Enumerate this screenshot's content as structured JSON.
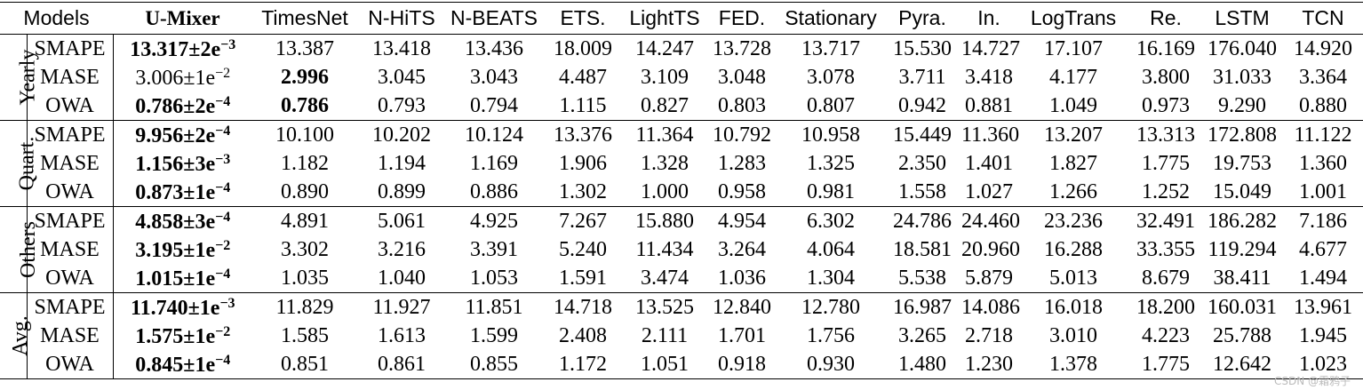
{
  "header": {
    "models": "Models",
    "columns": [
      "U-Mixer",
      "TimesNet",
      "N-HiTS",
      "N-BEATS",
      "ETS.",
      "LightTS",
      "FED.",
      "Stationary",
      "Pyra.",
      "In.",
      "LogTrans",
      "Re.",
      "LSTM",
      "TCN"
    ],
    "bold": [
      0
    ]
  },
  "groups": [
    {
      "label": "Yearly",
      "rows": [
        {
          "metric": "SMAPE",
          "u_mixer": {
            "text": "13.317±2e",
            "exp": "−3"
          },
          "values": [
            "13.387",
            "13.418",
            "13.436",
            "18.009",
            "14.247",
            "13.728",
            "13.717",
            "15.530",
            "14.727",
            "17.107",
            "16.169",
            "176.040",
            "14.920"
          ],
          "bold": [
            0
          ]
        },
        {
          "metric": "MASE",
          "u_mixer": {
            "text": "3.006±1e",
            "exp": "−2"
          },
          "values": [
            "2.996",
            "3.045",
            "3.043",
            "4.487",
            "3.109",
            "3.048",
            "3.078",
            "3.711",
            "3.418",
            "4.177",
            "3.800",
            "31.033",
            "3.364"
          ],
          "bold": [
            1
          ]
        },
        {
          "metric": "OWA",
          "u_mixer": {
            "text": "0.786±2e",
            "exp": "−4"
          },
          "values": [
            "0.786",
            "0.793",
            "0.794",
            "1.115",
            "0.827",
            "0.803",
            "0.807",
            "0.942",
            "0.881",
            "1.049",
            "0.973",
            "9.290",
            "0.880"
          ],
          "bold": [
            0,
            1
          ]
        }
      ]
    },
    {
      "label": "Quart.",
      "rows": [
        {
          "metric": "SMAPE",
          "u_mixer": {
            "text": "9.956±2e",
            "exp": "−4"
          },
          "values": [
            "10.100",
            "10.202",
            "10.124",
            "13.376",
            "11.364",
            "10.792",
            "10.958",
            "15.449",
            "11.360",
            "13.207",
            "13.313",
            "172.808",
            "11.122"
          ],
          "bold": [
            0
          ]
        },
        {
          "metric": "MASE",
          "u_mixer": {
            "text": "1.156±3e",
            "exp": "−3"
          },
          "values": [
            "1.182",
            "1.194",
            "1.169",
            "1.906",
            "1.328",
            "1.283",
            "1.325",
            "2.350",
            "1.401",
            "1.827",
            "1.775",
            "19.753",
            "1.360"
          ],
          "bold": [
            0
          ]
        },
        {
          "metric": "OWA",
          "u_mixer": {
            "text": "0.873±1e",
            "exp": "−4"
          },
          "values": [
            "0.890",
            "0.899",
            "0.886",
            "1.302",
            "1.000",
            "0.958",
            "0.981",
            "1.558",
            "1.027",
            "1.266",
            "1.252",
            "15.049",
            "1.001"
          ],
          "bold": [
            0
          ]
        }
      ]
    },
    {
      "label": "Others",
      "rows": [
        {
          "metric": "SMAPE",
          "u_mixer": {
            "text": "4.858±3e",
            "exp": "−4"
          },
          "values": [
            "4.891",
            "5.061",
            "4.925",
            "7.267",
            "15.880",
            "4.954",
            "6.302",
            "24.786",
            "24.460",
            "23.236",
            "32.491",
            "186.282",
            "7.186"
          ],
          "bold": [
            0
          ]
        },
        {
          "metric": "MASE",
          "u_mixer": {
            "text": "3.195±1e",
            "exp": "−2"
          },
          "values": [
            "3.302",
            "3.216",
            "3.391",
            "5.240",
            "11.434",
            "3.264",
            "4.064",
            "18.581",
            "20.960",
            "16.288",
            "33.355",
            "119.294",
            "4.677"
          ],
          "bold": [
            0
          ]
        },
        {
          "metric": "OWA",
          "u_mixer": {
            "text": "1.015±1e",
            "exp": "−4"
          },
          "values": [
            "1.035",
            "1.040",
            "1.053",
            "1.591",
            "3.474",
            "1.036",
            "1.304",
            "5.538",
            "5.879",
            "5.013",
            "8.679",
            "38.411",
            "1.494"
          ],
          "bold": [
            0
          ]
        }
      ]
    },
    {
      "label": "Avg.",
      "rows": [
        {
          "metric": "SMAPE",
          "u_mixer": {
            "text": "11.740±1e",
            "exp": "−3"
          },
          "values": [
            "11.829",
            "11.927",
            "11.851",
            "14.718",
            "13.525",
            "12.840",
            "12.780",
            "16.987",
            "14.086",
            "16.018",
            "18.200",
            "160.031",
            "13.961"
          ],
          "bold": [
            0
          ]
        },
        {
          "metric": "MASE",
          "u_mixer": {
            "text": "1.575±1e",
            "exp": "−2"
          },
          "values": [
            "1.585",
            "1.613",
            "1.599",
            "2.408",
            "2.111",
            "1.701",
            "1.756",
            "3.265",
            "2.718",
            "3.010",
            "4.223",
            "25.788",
            "1.945"
          ],
          "bold": [
            0
          ]
        },
        {
          "metric": "OWA",
          "u_mixer": {
            "text": "0.845±1e",
            "exp": "−4"
          },
          "values": [
            "0.851",
            "0.861",
            "0.855",
            "1.172",
            "1.051",
            "0.918",
            "0.930",
            "1.480",
            "1.230",
            "1.378",
            "1.775",
            "12.642",
            "1.023"
          ],
          "bold": [
            0
          ]
        }
      ]
    }
  ],
  "watermark": "CSDN @霜鸦子"
}
